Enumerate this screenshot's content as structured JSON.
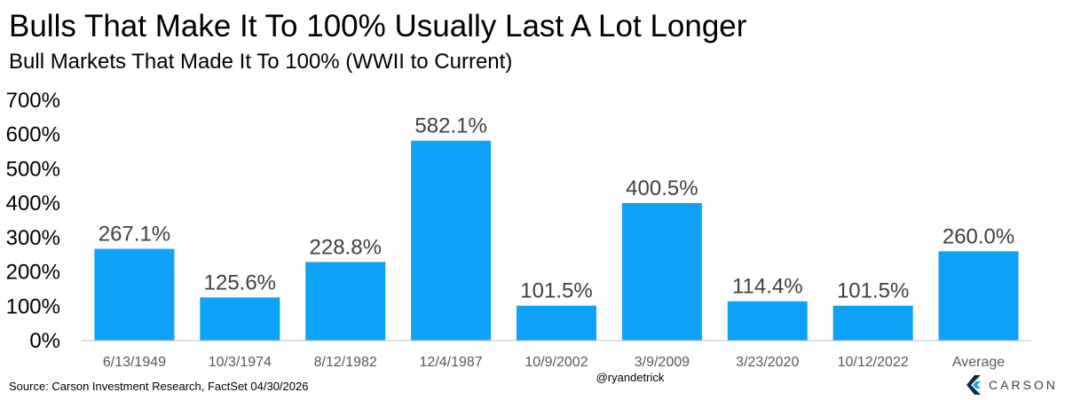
{
  "header": {
    "title": "Bulls That Make It To 100% Usually Last A Lot Longer",
    "subtitle": "Bull Markets That Made It To 100% (WWII to Current)"
  },
  "footer": {
    "source": "Source: Carson Investment Research, FactSet 04/30/2026",
    "handle": "@ryandetrick",
    "brand": "CARSON"
  },
  "colors": {
    "bar": "#0DA2F7",
    "axis": "#BFBFBF",
    "logo_dark": "#0E2A44",
    "logo_accent": "#0DA2F7"
  },
  "chart_data": {
    "type": "bar",
    "title": "Bulls That Make It To 100% Usually Last A Lot Longer",
    "subtitle": "Bull Markets That Made It To 100% (WWII to Current)",
    "xlabel": "",
    "ylabel": "",
    "categories": [
      "6/13/1949",
      "10/3/1974",
      "8/12/1982",
      "12/4/1987",
      "10/9/2002",
      "3/9/2009",
      "3/23/2020",
      "10/12/2022",
      "Average"
    ],
    "values": [
      267.1,
      125.6,
      228.8,
      582.1,
      101.5,
      400.5,
      114.4,
      101.5,
      260.0
    ],
    "data_labels": [
      "267.1%",
      "125.6%",
      "228.8%",
      "582.1%",
      "101.5%",
      "400.5%",
      "114.4%",
      "101.5%",
      "260.0%"
    ],
    "ylim": [
      0,
      700
    ],
    "yticks": [
      0,
      100,
      200,
      300,
      400,
      500,
      600,
      700
    ],
    "ytick_labels": [
      "0%",
      "100%",
      "200%",
      "300%",
      "400%",
      "500%",
      "600%",
      "700%"
    ],
    "grid": false,
    "legend": "none"
  }
}
